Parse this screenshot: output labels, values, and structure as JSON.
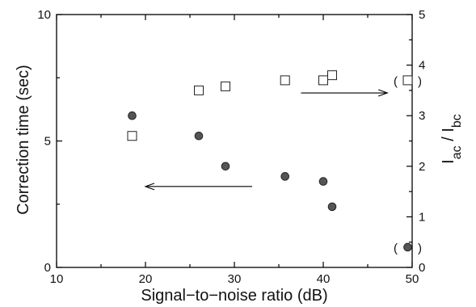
{
  "colors": {
    "axis": "#000000",
    "filled_marker": "#555555",
    "open_marker": "#ffffff",
    "marker_stroke": "#222222"
  },
  "chart_data": {
    "type": "scatter",
    "title": "",
    "xlabel": "Signal−to−noise  ratio   (dB)",
    "ylabel_left": "Correction time  (sec)",
    "ylabel_right": "I_ac / I_bc",
    "xlim": [
      10,
      50
    ],
    "ylim_left": [
      0,
      10
    ],
    "ylim_right": [
      0,
      5
    ],
    "x_ticks": [
      "10",
      "20",
      "30",
      "40",
      "50"
    ],
    "y_left_ticks": [
      "0",
      "5",
      "10"
    ],
    "y_right_ticks": [
      "0",
      "1",
      "2",
      "3",
      "4",
      "5"
    ],
    "grid": false,
    "legend": "none",
    "series": [
      {
        "axis": "left",
        "marker": "filled-circle",
        "points": [
          {
            "x": 18.5,
            "y": 6.0
          },
          {
            "x": 26.0,
            "y": 5.2
          },
          {
            "x": 29.0,
            "y": 4.0
          },
          {
            "x": 35.7,
            "y": 3.6
          },
          {
            "x": 40.0,
            "y": 3.4
          },
          {
            "x": 41.0,
            "y": 2.4
          },
          {
            "x": 49.5,
            "y": 0.8,
            "parenthesized": true
          }
        ]
      },
      {
        "axis": "right",
        "marker": "open-square",
        "points": [
          {
            "x": 18.5,
            "y": 2.6
          },
          {
            "x": 26.0,
            "y": 3.5
          },
          {
            "x": 29.0,
            "y": 3.58
          },
          {
            "x": 35.7,
            "y": 3.7
          },
          {
            "x": 40.0,
            "y": 3.7
          },
          {
            "x": 41.0,
            "y": 3.8
          },
          {
            "x": 49.5,
            "y": 3.7,
            "parenthesized": true
          }
        ]
      }
    ],
    "annotations": [
      {
        "type": "arrow",
        "direction": "left",
        "from_x": 32,
        "to_x": 20,
        "y_left": 3.2,
        "meaning": "points to left axis"
      },
      {
        "type": "arrow",
        "direction": "right",
        "from_x": 37.5,
        "to_x": 47.2,
        "y_right": 3.45,
        "meaning": "points to right axis"
      }
    ]
  }
}
